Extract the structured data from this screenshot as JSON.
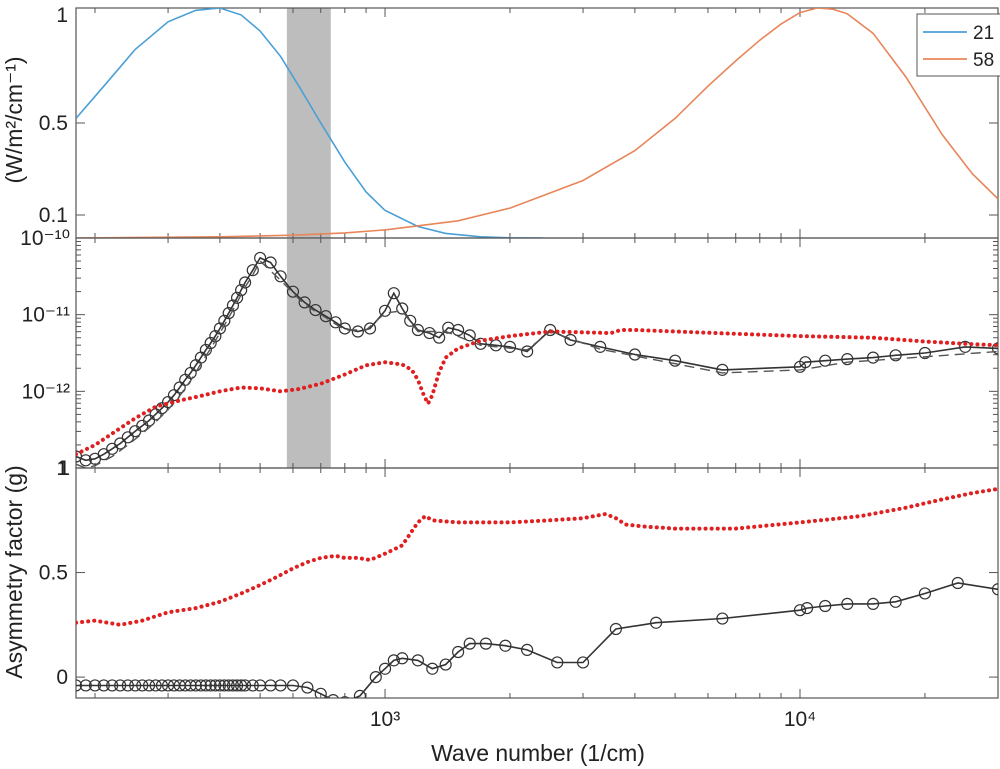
{
  "chart_data": [
    {
      "type": "line",
      "panel": "top",
      "ylabel": "(W/m²/cm⁻¹)",
      "xscale": "log",
      "xlim": [
        180,
        30000
      ],
      "ylim": [
        0,
        1
      ],
      "ytick_labels": [
        "0.1",
        "0.5",
        "1"
      ],
      "ytick_values": [
        0.1,
        0.5,
        1
      ],
      "legend": "top-right",
      "shaded_band": [
        580,
        740
      ],
      "series": [
        {
          "name": "21",
          "color": "#4a9fd6",
          "x": [
            180,
            210,
            250,
            300,
            350,
            400,
            450,
            500,
            560,
            620,
            700,
            800,
            900,
            1000,
            1200,
            1400,
            1700,
            2000,
            2400
          ],
          "y": [
            0.52,
            0.66,
            0.82,
            0.94,
            0.99,
            1.0,
            0.97,
            0.9,
            0.79,
            0.66,
            0.5,
            0.33,
            0.2,
            0.12,
            0.05,
            0.02,
            0.005,
            0.001,
            0.0
          ]
        },
        {
          "name": "58",
          "color": "#e8865a",
          "x": [
            180,
            400,
            600,
            800,
            1000,
            1500,
            2000,
            3000,
            4000,
            5000,
            6000,
            7000,
            8000,
            9000,
            10000,
            11000,
            12000,
            13000,
            15000,
            18000,
            22000,
            26000,
            30000
          ],
          "y": [
            0.0,
            0.005,
            0.012,
            0.022,
            0.035,
            0.075,
            0.13,
            0.25,
            0.38,
            0.52,
            0.66,
            0.77,
            0.86,
            0.93,
            0.98,
            1.0,
            0.995,
            0.975,
            0.89,
            0.7,
            0.45,
            0.28,
            0.17
          ]
        }
      ]
    },
    {
      "type": "line",
      "panel": "middle",
      "xscale": "log",
      "yscale": "log",
      "xlim": [
        180,
        30000
      ],
      "ytick_labels": [
        "1",
        "10⁻¹²",
        "10⁻¹¹",
        "10⁻¹⁰"
      ],
      "log_ytick_exponents": [
        -13,
        -12,
        -11,
        -10
      ],
      "ylim_exponent": [
        -13,
        -10
      ],
      "shaded_band": [
        580,
        740
      ],
      "series": [
        {
          "style": "solid-circles",
          "color": "#333333",
          "x": [
            180,
            190,
            200,
            210,
            220,
            230,
            240,
            250,
            260,
            270,
            280,
            290,
            300,
            310,
            320,
            330,
            340,
            350,
            360,
            370,
            380,
            390,
            400,
            410,
            420,
            430,
            440,
            450,
            460,
            480,
            500,
            530,
            560,
            600,
            640,
            680,
            720,
            760,
            800,
            860,
            920,
            1000,
            1050,
            1100,
            1150,
            1200,
            1280,
            1350,
            1420,
            1500,
            1600,
            1700,
            1850,
            2000,
            2200,
            2500,
            2800,
            3300,
            4000,
            5000,
            6500,
            10000,
            10300,
            11500,
            13000,
            15000,
            17000,
            20000,
            25000,
            30000
          ],
          "y": [
            -12.85,
            -12.9,
            -12.88,
            -12.82,
            -12.75,
            -12.68,
            -12.6,
            -12.52,
            -12.45,
            -12.38,
            -12.3,
            -12.22,
            -12.14,
            -12.05,
            -11.95,
            -11.85,
            -11.76,
            -11.66,
            -11.56,
            -11.46,
            -11.37,
            -11.28,
            -11.18,
            -11.08,
            -10.98,
            -10.88,
            -10.78,
            -10.68,
            -10.58,
            -10.42,
            -10.26,
            -10.32,
            -10.5,
            -10.7,
            -10.84,
            -10.94,
            -11.02,
            -11.1,
            -11.18,
            -11.22,
            -11.18,
            -10.95,
            -10.72,
            -10.92,
            -11.08,
            -11.2,
            -11.24,
            -11.3,
            -11.17,
            -11.2,
            -11.27,
            -11.38,
            -11.4,
            -11.42,
            -11.48,
            -11.2,
            -11.33,
            -11.42,
            -11.52,
            -11.6,
            -11.72,
            -11.68,
            -11.62,
            -11.6,
            -11.58,
            -11.56,
            -11.53,
            -11.5,
            -11.42,
            -11.44
          ]
        },
        {
          "style": "dashed",
          "color": "#555555",
          "x": [
            180,
            190,
            200,
            220,
            240,
            260,
            280,
            300,
            320,
            340,
            360,
            380,
            400,
            420,
            440,
            460,
            480,
            500,
            560,
            640,
            720,
            800,
            900,
            1000,
            1100,
            1200,
            1400,
            1700,
            2200,
            2500,
            3300,
            5000,
            6500,
            10000,
            13000,
            20000,
            30000
          ],
          "y": [
            -12.95,
            -13.0,
            -12.97,
            -12.85,
            -12.7,
            -12.55,
            -12.4,
            -12.24,
            -12.06,
            -11.86,
            -11.64,
            -11.44,
            -11.24,
            -11.04,
            -10.84,
            -10.64,
            -10.48,
            -10.3,
            -10.55,
            -10.87,
            -11.04,
            -11.2,
            -11.2,
            -10.98,
            -10.95,
            -11.22,
            -11.22,
            -11.4,
            -11.46,
            -11.22,
            -11.45,
            -11.64,
            -11.76,
            -11.72,
            -11.62,
            -11.55,
            -11.48
          ]
        },
        {
          "style": "dotted",
          "color": "#e02020",
          "x": [
            180,
            200,
            220,
            250,
            280,
            320,
            360,
            400,
            450,
            500,
            560,
            620,
            700,
            800,
            900,
            1000,
            1100,
            1160,
            1200,
            1240,
            1270,
            1300,
            1350,
            1400,
            1500,
            1700,
            2000,
            2500,
            3000,
            3500,
            3700,
            4000,
            5000,
            7000,
            10000,
            15000,
            20000,
            25000,
            30000
          ],
          "y": [
            -12.82,
            -12.7,
            -12.55,
            -12.35,
            -12.2,
            -12.12,
            -12.06,
            -12.0,
            -11.95,
            -11.96,
            -12.0,
            -11.97,
            -11.9,
            -11.78,
            -11.66,
            -11.62,
            -11.65,
            -11.72,
            -11.85,
            -12.05,
            -12.16,
            -12.05,
            -11.75,
            -11.56,
            -11.44,
            -11.34,
            -11.28,
            -11.22,
            -11.23,
            -11.24,
            -11.2,
            -11.2,
            -11.22,
            -11.25,
            -11.28,
            -11.3,
            -11.35,
            -11.38,
            -11.4
          ]
        }
      ]
    },
    {
      "type": "line",
      "panel": "bottom",
      "xlabel": "Wave number (1/cm)",
      "ylabel": "Asymmetry factor (g)",
      "xscale": "log",
      "xlim": [
        180,
        30000
      ],
      "ylim": [
        -0.1,
        1
      ],
      "ytick_labels": [
        "0",
        "0.5",
        "1"
      ],
      "ytick_values": [
        0,
        0.5,
        1
      ],
      "xtick_labels": [
        "10³",
        "10⁴"
      ],
      "xtick_values": [
        1000,
        10000
      ],
      "series": [
        {
          "style": "dotted",
          "color": "#e02020",
          "x": [
            180,
            200,
            230,
            260,
            300,
            350,
            400,
            450,
            500,
            550,
            600,
            650,
            700,
            760,
            800,
            860,
            920,
            1000,
            1100,
            1200,
            1250,
            1300,
            1500,
            2000,
            2500,
            3000,
            3400,
            3600,
            3800,
            4200,
            5000,
            7000,
            10000,
            14000,
            18000,
            22000,
            26000,
            30000
          ],
          "y": [
            0.26,
            0.27,
            0.25,
            0.27,
            0.31,
            0.33,
            0.36,
            0.4,
            0.44,
            0.48,
            0.52,
            0.55,
            0.57,
            0.58,
            0.57,
            0.57,
            0.56,
            0.59,
            0.63,
            0.74,
            0.77,
            0.75,
            0.74,
            0.74,
            0.75,
            0.76,
            0.78,
            0.76,
            0.73,
            0.72,
            0.71,
            0.71,
            0.74,
            0.77,
            0.81,
            0.85,
            0.88,
            0.9
          ]
        },
        {
          "style": "solid-circles",
          "color": "#333333",
          "x": [
            180,
            190,
            200,
            210,
            220,
            230,
            240,
            250,
            260,
            270,
            280,
            290,
            300,
            310,
            320,
            330,
            340,
            350,
            360,
            370,
            380,
            390,
            400,
            410,
            420,
            430,
            440,
            450,
            460,
            480,
            500,
            530,
            560,
            600,
            650,
            700,
            750,
            800,
            870,
            950,
            1000,
            1050,
            1100,
            1200,
            1300,
            1400,
            1500,
            1600,
            1750,
            1950,
            2200,
            2600,
            3000,
            3600,
            4500,
            6500,
            10000,
            10400,
            11500,
            13000,
            15000,
            17000,
            20000,
            24000,
            30000
          ],
          "y": [
            -0.04,
            -0.04,
            -0.04,
            -0.04,
            -0.04,
            -0.04,
            -0.04,
            -0.04,
            -0.04,
            -0.04,
            -0.04,
            -0.04,
            -0.04,
            -0.04,
            -0.04,
            -0.04,
            -0.04,
            -0.04,
            -0.04,
            -0.04,
            -0.04,
            -0.04,
            -0.04,
            -0.04,
            -0.04,
            -0.04,
            -0.04,
            -0.04,
            -0.04,
            -0.04,
            -0.04,
            -0.04,
            -0.04,
            -0.04,
            -0.05,
            -0.08,
            -0.11,
            -0.12,
            -0.09,
            0.0,
            0.04,
            0.08,
            0.09,
            0.08,
            0.04,
            0.06,
            0.12,
            0.16,
            0.16,
            0.15,
            0.13,
            0.07,
            0.07,
            0.23,
            0.26,
            0.28,
            0.32,
            0.33,
            0.34,
            0.35,
            0.35,
            0.36,
            0.4,
            0.45,
            0.42
          ]
        }
      ]
    }
  ]
}
